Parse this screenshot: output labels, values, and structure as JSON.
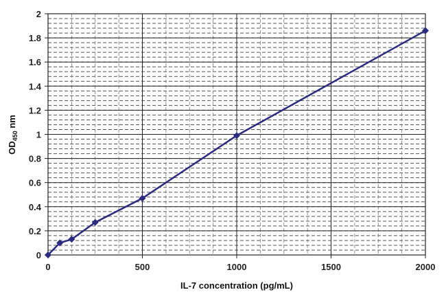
{
  "chart_data": {
    "type": "line",
    "title": "",
    "xlabel": "IL-7 concentration (pg/mL)",
    "ylabel": {
      "main": "OD",
      "subscript": "450",
      "suffix": " nm"
    },
    "xlim": [
      0,
      2000
    ],
    "ylim": [
      0,
      2
    ],
    "xticks": [
      0,
      500,
      1000,
      1500,
      2000
    ],
    "yticks": [
      0,
      0.2,
      0.4,
      0.6,
      0.8,
      1,
      1.2,
      1.4,
      1.6,
      1.8,
      2
    ],
    "grid": true,
    "series": [
      {
        "color": "#2b2b80",
        "x": [
          0,
          62.5,
          125,
          250,
          500,
          1000,
          2000
        ],
        "y": [
          0,
          0.1,
          0.13,
          0.27,
          0.47,
          0.99,
          1.86
        ]
      }
    ]
  }
}
